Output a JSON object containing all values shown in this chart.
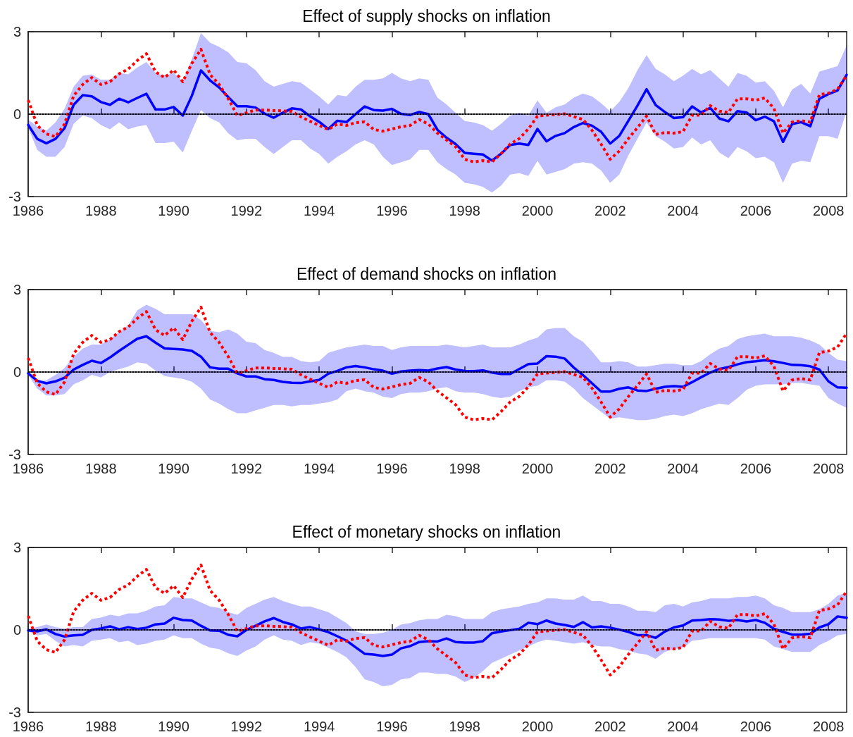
{
  "chart_data": [
    {
      "type": "line",
      "title": "Effect of supply shocks on inflation",
      "x": [
        1986,
        1986.25,
        1986.5,
        1986.75,
        1987,
        1987.25,
        1987.5,
        1987.75,
        1988,
        1988.25,
        1988.5,
        1988.75,
        1989,
        1989.25,
        1989.5,
        1989.75,
        1990,
        1990.25,
        1990.5,
        1990.75,
        1991,
        1991.25,
        1991.5,
        1991.75,
        1992,
        1992.25,
        1992.5,
        1992.75,
        1993,
        1993.25,
        1993.5,
        1993.75,
        1994,
        1994.25,
        1994.5,
        1994.75,
        1995,
        1995.25,
        1995.5,
        1995.75,
        1996,
        1996.25,
        1996.5,
        1996.75,
        1997,
        1997.25,
        1997.5,
        1997.75,
        1998,
        1998.25,
        1998.5,
        1998.75,
        1999,
        1999.25,
        1999.5,
        1999.75,
        2000,
        2000.25,
        2000.5,
        2000.75,
        2001,
        2001.25,
        2001.5,
        2001.75,
        2002,
        2002.25,
        2002.5,
        2002.75,
        2003,
        2003.25,
        2003.5,
        2003.75,
        2004,
        2004.25,
        2004.5,
        2004.75,
        2005,
        2005.25,
        2005.5,
        2005.75,
        2006,
        2006.25,
        2006.5,
        2006.75,
        2007,
        2007.25,
        2007.5,
        2007.75,
        2008,
        2008.25,
        2008.5
      ],
      "xlim": [
        1986,
        2008.5
      ],
      "xticks": [
        1986,
        1988,
        1990,
        1992,
        1994,
        1996,
        1998,
        2000,
        2002,
        2004,
        2006,
        2008
      ],
      "ylim": [
        -3,
        3
      ],
      "yticks": [
        -3,
        0,
        3
      ],
      "ref_lines": [
        {
          "axis": "y",
          "value": 0,
          "color": "#000000",
          "line_style": "dotted"
        }
      ],
      "series": [
        {
          "color": "#0000ff",
          "line_style": "solid",
          "values": [
            -0.39,
            -0.9,
            -1.06,
            -0.9,
            -0.51,
            0.34,
            0.69,
            0.65,
            0.44,
            0.34,
            0.56,
            0.43,
            0.59,
            0.74,
            0.17,
            0.17,
            0.26,
            -0.05,
            0.67,
            1.59,
            1.23,
            0.97,
            0.62,
            0.29,
            0.29,
            0.24,
            0.02,
            -0.13,
            0.05,
            0.21,
            0.17,
            -0.08,
            -0.28,
            -0.54,
            -0.24,
            -0.29,
            0,
            0.28,
            0.15,
            0.13,
            0.19,
            0.01,
            -0.03,
            0.08,
            0,
            -0.57,
            -0.86,
            -1.09,
            -1.41,
            -1.44,
            -1.47,
            -1.69,
            -1.44,
            -1.12,
            -1.07,
            -1.12,
            -0.54,
            -0.99,
            -0.79,
            -0.69,
            -0.47,
            -0.32,
            -0.42,
            -0.64,
            -1.07,
            -0.79,
            -0.24,
            0.31,
            0.91,
            0.33,
            0.08,
            -0.14,
            -0.11,
            0.28,
            0.06,
            0.23,
            -0.16,
            -0.26,
            0.11,
            0.06,
            -0.22,
            -0.09,
            -0.26,
            -1.01,
            -0.36,
            -0.29,
            -0.44,
            0.56,
            0.73,
            0.86,
            1.43
          ],
          "upper": [
            -0.2,
            -0.45,
            -0.6,
            -0.3,
            0.2,
            1.0,
            1.4,
            1.45,
            1.25,
            1.25,
            1.5,
            1.45,
            1.7,
            1.9,
            1.5,
            1.4,
            1.5,
            1.2,
            2.0,
            2.95,
            2.6,
            2.45,
            2.25,
            1.9,
            1.85,
            1.6,
            1.2,
            1.0,
            1.1,
            1.2,
            1.15,
            0.9,
            0.65,
            0.35,
            0.7,
            0.65,
            1.0,
            1.25,
            1.25,
            1.3,
            1.5,
            1.3,
            1.2,
            1.3,
            1.25,
            0.6,
            0.35,
            0.05,
            -0.25,
            -0.3,
            -0.4,
            -0.6,
            -0.35,
            -0.05,
            0.05,
            -0.05,
            0.5,
            0.05,
            0.25,
            0.35,
            0.6,
            0.75,
            0.65,
            0.4,
            0.1,
            0.45,
            0.95,
            1.6,
            2.15,
            1.65,
            1.45,
            1.2,
            1.4,
            1.65,
            1.45,
            1.6,
            1.3,
            1.0,
            1.5,
            1.4,
            1.15,
            1.2,
            0.85,
            0.25,
            0.9,
            1.1,
            0.75,
            1.55,
            1.65,
            1.75,
            2.5
          ],
          "lower": [
            -0.5,
            -1.3,
            -1.55,
            -1.55,
            -1.2,
            -0.35,
            -0.05,
            -0.15,
            -0.4,
            -0.55,
            -0.3,
            -0.55,
            -0.45,
            -0.4,
            -1.05,
            -1.05,
            -1.0,
            -1.4,
            -0.6,
            0.15,
            -0.15,
            -0.3,
            -0.7,
            -0.95,
            -0.9,
            -0.9,
            -1.2,
            -1.45,
            -1.2,
            -0.95,
            -0.95,
            -1.25,
            -1.45,
            -1.8,
            -1.55,
            -1.35,
            -1.1,
            -0.95,
            -1.1,
            -1.55,
            -1.85,
            -1.75,
            -1.65,
            -1.3,
            -1.3,
            -1.75,
            -2.0,
            -2.2,
            -2.5,
            -2.55,
            -2.65,
            -2.85,
            -2.6,
            -2.2,
            -2.15,
            -2.25,
            -1.7,
            -2.2,
            -2.1,
            -2.0,
            -1.8,
            -1.75,
            -1.8,
            -2.05,
            -2.5,
            -2.2,
            -1.5,
            -0.9,
            -0.3,
            -0.8,
            -1.0,
            -1.25,
            -1.2,
            -0.85,
            -1.1,
            -0.95,
            -1.4,
            -1.6,
            -1.2,
            -1.35,
            -1.6,
            -1.55,
            -1.75,
            -2.5,
            -1.8,
            -1.7,
            -1.75,
            -0.8,
            -0.8,
            -0.9,
            0.1
          ]
        },
        {
          "color": "#ff0000",
          "line_style": "dotted",
          "values": [
            0.51,
            -0.41,
            -0.72,
            -0.82,
            -0.36,
            0.67,
            1.08,
            1.33,
            1.08,
            1.18,
            1.47,
            1.64,
            1.95,
            2.2,
            1.54,
            1.33,
            1.61,
            1.18,
            1.85,
            2.36,
            1.44,
            1.08,
            0.56,
            -0.05,
            0.05,
            0.15,
            0.15,
            0.13,
            0.12,
            0.1,
            -0.1,
            -0.26,
            -0.41,
            -0.56,
            -0.36,
            -0.41,
            -0.31,
            -0.28,
            -0.56,
            -0.62,
            -0.54,
            -0.46,
            -0.41,
            -0.2,
            -0.36,
            -0.69,
            -0.94,
            -1.19,
            -1.64,
            -1.74,
            -1.69,
            -1.74,
            -1.44,
            -1.09,
            -0.89,
            -0.54,
            -0.07,
            -0.04,
            -0.01,
            0.01,
            -0.09,
            -0.19,
            -0.59,
            -1.09,
            -1.64,
            -1.34,
            -0.89,
            -0.49,
            -0.07,
            -0.74,
            -0.67,
            -0.69,
            -0.64,
            -0.04,
            -0.04,
            0.31,
            0.11,
            0.06,
            0.56,
            0.56,
            0.51,
            0.59,
            0.21,
            -0.69,
            -0.29,
            -0.24,
            -0.29,
            0.71,
            0.76,
            0.91,
            1.41
          ]
        }
      ]
    },
    {
      "type": "line",
      "title": "Effect of demand shocks on inflation",
      "x": [
        1986,
        1986.25,
        1986.5,
        1986.75,
        1987,
        1987.25,
        1987.5,
        1987.75,
        1988,
        1988.25,
        1988.5,
        1988.75,
        1989,
        1989.25,
        1989.5,
        1989.75,
        1990,
        1990.25,
        1990.5,
        1990.75,
        1991,
        1991.25,
        1991.5,
        1991.75,
        1992,
        1992.25,
        1992.5,
        1992.75,
        1993,
        1993.25,
        1993.5,
        1993.75,
        1994,
        1994.25,
        1994.5,
        1994.75,
        1995,
        1995.25,
        1995.5,
        1995.75,
        1996,
        1996.25,
        1996.5,
        1996.75,
        1997,
        1997.25,
        1997.5,
        1997.75,
        1998,
        1998.25,
        1998.5,
        1998.75,
        1999,
        1999.25,
        1999.5,
        1999.75,
        2000,
        2000.25,
        2000.5,
        2000.75,
        2001,
        2001.25,
        2001.5,
        2001.75,
        2002,
        2002.25,
        2002.5,
        2002.75,
        2003,
        2003.25,
        2003.5,
        2003.75,
        2004,
        2004.25,
        2004.5,
        2004.75,
        2005,
        2005.25,
        2005.5,
        2005.75,
        2006,
        2006.25,
        2006.5,
        2006.75,
        2007,
        2007.25,
        2007.5,
        2007.75,
        2008,
        2008.25,
        2008.5
      ],
      "xlim": [
        1986,
        2008.5
      ],
      "xticks": [
        1986,
        1988,
        1990,
        1992,
        1994,
        1996,
        1998,
        2000,
        2002,
        2004,
        2006,
        2008
      ],
      "ylim": [
        -3,
        3
      ],
      "yticks": [
        -3,
        0,
        3
      ],
      "ref_lines": [
        {
          "axis": "y",
          "value": 0,
          "color": "#000000",
          "line_style": "dotted"
        }
      ],
      "series": [
        {
          "color": "#0000ff",
          "line_style": "solid",
          "values": [
            -0.05,
            -0.32,
            -0.41,
            -0.34,
            -0.21,
            0.09,
            0.26,
            0.41,
            0.33,
            0.53,
            0.77,
            0.99,
            1.21,
            1.3,
            1.07,
            0.86,
            0.84,
            0.82,
            0.77,
            0.56,
            0.17,
            0.12,
            0.12,
            -0.05,
            -0.16,
            -0.16,
            -0.26,
            -0.29,
            -0.36,
            -0.39,
            -0.4,
            -0.34,
            -0.29,
            -0.06,
            0.04,
            0.17,
            0.22,
            0.17,
            0.1,
            0.05,
            -0.06,
            0.02,
            0.05,
            0.07,
            0.05,
            0.13,
            0.18,
            0.09,
            0.04,
            0.03,
            0.06,
            -0.02,
            -0.07,
            -0.07,
            0.11,
            0.29,
            0.31,
            0.58,
            0.56,
            0.49,
            0.16,
            -0.11,
            -0.41,
            -0.71,
            -0.71,
            -0.61,
            -0.56,
            -0.67,
            -0.69,
            -0.61,
            -0.54,
            -0.51,
            -0.54,
            -0.37,
            -0.19,
            -0.02,
            0.11,
            0.18,
            0.28,
            0.36,
            0.39,
            0.43,
            0.39,
            0.33,
            0.26,
            0.25,
            0.21,
            0.09,
            -0.34,
            -0.56,
            -0.57
          ],
          "upper": [
            -0.05,
            -0.35,
            -0.3,
            -0.1,
            0.15,
            0.55,
            0.85,
            1.0,
            1.0,
            1.2,
            1.45,
            1.7,
            2.25,
            2.45,
            2.3,
            2.1,
            2.1,
            2.1,
            2.1,
            1.9,
            1.5,
            1.45,
            1.55,
            1.4,
            1.1,
            1.05,
            0.8,
            0.7,
            0.55,
            0.55,
            0.4,
            0.35,
            0.4,
            0.7,
            0.8,
            0.9,
            0.95,
            1.0,
            0.95,
            0.95,
            0.8,
            0.9,
            0.95,
            0.95,
            0.95,
            0.95,
            1.0,
            0.95,
            0.9,
            0.95,
            1.0,
            0.9,
            0.9,
            0.9,
            1.0,
            1.15,
            1.25,
            1.55,
            1.6,
            1.6,
            1.3,
            1.1,
            0.75,
            0.35,
            0.35,
            0.4,
            0.35,
            0.2,
            0.2,
            0.25,
            0.3,
            0.3,
            0.25,
            0.25,
            0.4,
            0.65,
            0.85,
            0.95,
            1.2,
            1.3,
            1.35,
            1.4,
            1.3,
            1.3,
            1.3,
            1.25,
            1.15,
            1.0,
            0.7,
            0.45,
            0.4
          ],
          "lower": [
            -0.1,
            -0.6,
            -0.85,
            -0.85,
            -0.8,
            -0.45,
            -0.3,
            -0.1,
            -0.2,
            0.0,
            0.1,
            0.2,
            0.35,
            0.3,
            0.05,
            -0.15,
            -0.2,
            -0.25,
            -0.35,
            -0.6,
            -1.0,
            -1.15,
            -1.35,
            -1.5,
            -1.5,
            -1.4,
            -1.3,
            -1.2,
            -1.2,
            -1.25,
            -1.2,
            -1.2,
            -1.15,
            -1.1,
            -1.0,
            -0.7,
            -0.6,
            -0.7,
            -0.75,
            -0.9,
            -0.95,
            -0.8,
            -0.75,
            -0.75,
            -0.7,
            -0.6,
            -0.55,
            -0.7,
            -0.75,
            -0.75,
            -0.8,
            -0.9,
            -0.95,
            -0.9,
            -0.7,
            -0.55,
            -0.5,
            -0.3,
            -0.3,
            -0.35,
            -0.6,
            -0.95,
            -1.2,
            -1.45,
            -1.7,
            -1.65,
            -1.7,
            -1.75,
            -1.75,
            -1.7,
            -1.6,
            -1.55,
            -1.6,
            -1.5,
            -1.35,
            -1.25,
            -1.15,
            -1.2,
            -0.95,
            -0.65,
            -0.5,
            -0.45,
            -0.45,
            -0.45,
            -0.4,
            -0.4,
            -0.45,
            -0.5,
            -0.95,
            -1.15,
            -1.3
          ]
        },
        {
          "color": "#ff0000",
          "line_style": "dotted",
          "values": [
            0.51,
            -0.41,
            -0.72,
            -0.82,
            -0.36,
            0.67,
            1.08,
            1.33,
            1.08,
            1.18,
            1.47,
            1.64,
            1.95,
            2.2,
            1.54,
            1.33,
            1.61,
            1.18,
            1.85,
            2.36,
            1.44,
            1.08,
            0.56,
            -0.05,
            0.05,
            0.15,
            0.15,
            0.13,
            0.12,
            0.1,
            -0.1,
            -0.26,
            -0.41,
            -0.56,
            -0.36,
            -0.41,
            -0.31,
            -0.28,
            -0.56,
            -0.62,
            -0.54,
            -0.46,
            -0.41,
            -0.2,
            -0.36,
            -0.69,
            -0.94,
            -1.19,
            -1.64,
            -1.74,
            -1.69,
            -1.74,
            -1.44,
            -1.09,
            -0.89,
            -0.54,
            -0.07,
            -0.04,
            -0.01,
            0.01,
            -0.09,
            -0.19,
            -0.59,
            -1.09,
            -1.64,
            -1.34,
            -0.89,
            -0.49,
            -0.07,
            -0.74,
            -0.67,
            -0.69,
            -0.64,
            -0.04,
            -0.04,
            0.31,
            0.11,
            0.06,
            0.56,
            0.56,
            0.51,
            0.59,
            0.21,
            -0.69,
            -0.29,
            -0.24,
            -0.29,
            0.71,
            0.76,
            0.91,
            1.41
          ]
        }
      ]
    },
    {
      "type": "line",
      "title": "Effect of monetary shocks on inflation",
      "x": [
        1986,
        1986.25,
        1986.5,
        1986.75,
        1987,
        1987.25,
        1987.5,
        1987.75,
        1988,
        1988.25,
        1988.5,
        1988.75,
        1989,
        1989.25,
        1989.5,
        1989.75,
        1990,
        1990.25,
        1990.5,
        1990.75,
        1991,
        1991.25,
        1991.5,
        1991.75,
        1992,
        1992.25,
        1992.5,
        1992.75,
        1993,
        1993.25,
        1993.5,
        1993.75,
        1994,
        1994.25,
        1994.5,
        1994.75,
        1995,
        1995.25,
        1995.5,
        1995.75,
        1996,
        1996.25,
        1996.5,
        1996.75,
        1997,
        1997.25,
        1997.5,
        1997.75,
        1998,
        1998.25,
        1998.5,
        1998.75,
        1999,
        1999.25,
        1999.5,
        1999.75,
        2000,
        2000.25,
        2000.5,
        2000.75,
        2001,
        2001.25,
        2001.5,
        2001.75,
        2002,
        2002.25,
        2002.5,
        2002.75,
        2003,
        2003.25,
        2003.5,
        2003.75,
        2004,
        2004.25,
        2004.5,
        2004.75,
        2005,
        2005.25,
        2005.5,
        2005.75,
        2006,
        2006.25,
        2006.5,
        2006.75,
        2007,
        2007.25,
        2007.5,
        2007.75,
        2008,
        2008.25,
        2008.5
      ],
      "xlim": [
        1986,
        2008.5
      ],
      "xticks": [
        1986,
        1988,
        1990,
        1992,
        1994,
        1996,
        1998,
        2000,
        2002,
        2004,
        2006,
        2008
      ],
      "ylim": [
        -3,
        3
      ],
      "yticks": [
        -3,
        0,
        3
      ],
      "ref_lines": [
        {
          "axis": "y",
          "value": 0,
          "color": "#000000",
          "line_style": "dotted"
        }
      ],
      "series": [
        {
          "color": "#0000ff",
          "line_style": "solid",
          "values": [
            -0.02,
            -0.05,
            0.02,
            -0.15,
            -0.24,
            -0.2,
            -0.18,
            0,
            0.05,
            0.13,
            0.02,
            0.1,
            0.03,
            0.08,
            0.2,
            0.23,
            0.44,
            0.36,
            0.34,
            0.15,
            -0.02,
            -0.03,
            -0.18,
            -0.23,
            0,
            0.15,
            0.31,
            0.43,
            0.29,
            0.2,
            0.05,
            0.1,
            0.02,
            -0.08,
            -0.23,
            -0.39,
            -0.63,
            -0.87,
            -0.9,
            -0.95,
            -0.9,
            -0.67,
            -0.59,
            -0.44,
            -0.41,
            -0.42,
            -0.31,
            -0.44,
            -0.46,
            -0.46,
            -0.41,
            -0.12,
            -0.06,
            -0.01,
            0.04,
            0.26,
            0.21,
            0.34,
            0.23,
            0.18,
            0.11,
            0.28,
            0.09,
            0.13,
            0.08,
            0.01,
            -0.07,
            -0.19,
            -0.19,
            -0.29,
            -0.06,
            0.09,
            0.16,
            0.34,
            0.36,
            0.39,
            0.38,
            0.33,
            0.36,
            0.31,
            0.36,
            0.26,
            0.04,
            -0.07,
            -0.17,
            -0.17,
            -0.14,
            0.09,
            0.21,
            0.49,
            0.44
          ],
          "upper": [
            0.05,
            0.1,
            0.2,
            0.1,
            0.05,
            0.1,
            0.1,
            0.4,
            0.45,
            0.55,
            0.5,
            0.6,
            0.6,
            0.7,
            0.85,
            0.9,
            1.2,
            1.15,
            1.15,
            1.0,
            0.85,
            0.8,
            0.65,
            0.55,
            0.8,
            0.95,
            1.1,
            1.2,
            1.05,
            0.95,
            0.85,
            0.85,
            0.75,
            0.65,
            0.45,
            0.25,
            -0.05,
            -0.15,
            -0.15,
            -0.1,
            0.0,
            0.2,
            0.25,
            0.35,
            0.4,
            0.4,
            0.55,
            0.5,
            0.4,
            0.4,
            0.4,
            0.65,
            0.75,
            0.8,
            0.85,
            0.95,
            1.0,
            1.15,
            1.15,
            1.1,
            1.1,
            1.25,
            1.05,
            1.05,
            0.95,
            0.95,
            0.85,
            0.7,
            0.7,
            0.65,
            0.9,
            0.95,
            0.85,
            1.0,
            1.05,
            1.15,
            1.15,
            1.15,
            1.2,
            1.2,
            1.25,
            1.15,
            0.9,
            0.8,
            0.65,
            0.65,
            0.65,
            0.75,
            0.95,
            1.25,
            1.35
          ],
          "lower": [
            -0.05,
            -0.2,
            -0.15,
            -0.4,
            -0.6,
            -0.55,
            -0.6,
            -0.4,
            -0.35,
            -0.3,
            -0.45,
            -0.4,
            -0.55,
            -0.5,
            -0.4,
            -0.35,
            -0.2,
            -0.3,
            -0.3,
            -0.5,
            -0.65,
            -0.7,
            -0.85,
            -0.95,
            -0.75,
            -0.6,
            -0.35,
            -0.2,
            -0.35,
            -0.4,
            -0.55,
            -0.45,
            -0.5,
            -0.65,
            -0.8,
            -1.0,
            -1.35,
            -1.8,
            -1.9,
            -2.05,
            -2.0,
            -1.8,
            -1.75,
            -1.55,
            -1.55,
            -1.6,
            -1.6,
            -1.7,
            -1.9,
            -1.75,
            -1.5,
            -1.2,
            -1.05,
            -0.9,
            -0.75,
            -0.6,
            -0.45,
            -0.35,
            -0.4,
            -0.45,
            -0.5,
            -0.45,
            -0.55,
            -0.6,
            -0.6,
            -0.7,
            -0.75,
            -0.85,
            -0.9,
            -1.05,
            -0.8,
            -0.7,
            -0.65,
            -0.4,
            -0.35,
            -0.3,
            -0.3,
            -0.3,
            -0.3,
            -0.3,
            -0.3,
            -0.35,
            -0.6,
            -0.7,
            -0.8,
            -0.8,
            -0.8,
            -0.55,
            -0.4,
            -0.2,
            -0.15
          ]
        },
        {
          "color": "#ff0000",
          "line_style": "dotted",
          "values": [
            0.51,
            -0.41,
            -0.72,
            -0.82,
            -0.36,
            0.67,
            1.08,
            1.33,
            1.08,
            1.18,
            1.47,
            1.64,
            1.95,
            2.2,
            1.54,
            1.33,
            1.61,
            1.18,
            1.85,
            2.36,
            1.44,
            1.08,
            0.56,
            -0.05,
            0.05,
            0.15,
            0.15,
            0.13,
            0.12,
            0.1,
            -0.1,
            -0.26,
            -0.41,
            -0.56,
            -0.36,
            -0.41,
            -0.31,
            -0.28,
            -0.56,
            -0.62,
            -0.54,
            -0.46,
            -0.41,
            -0.2,
            -0.36,
            -0.69,
            -0.94,
            -1.19,
            -1.64,
            -1.74,
            -1.69,
            -1.74,
            -1.44,
            -1.09,
            -0.89,
            -0.54,
            -0.07,
            -0.04,
            -0.01,
            0.01,
            -0.09,
            -0.19,
            -0.59,
            -1.09,
            -1.64,
            -1.34,
            -0.89,
            -0.49,
            -0.07,
            -0.74,
            -0.67,
            -0.69,
            -0.64,
            -0.04,
            -0.04,
            0.31,
            0.11,
            0.06,
            0.56,
            0.56,
            0.51,
            0.59,
            0.21,
            -0.69,
            -0.29,
            -0.24,
            -0.29,
            0.71,
            0.76,
            0.91,
            1.41
          ]
        }
      ]
    }
  ]
}
